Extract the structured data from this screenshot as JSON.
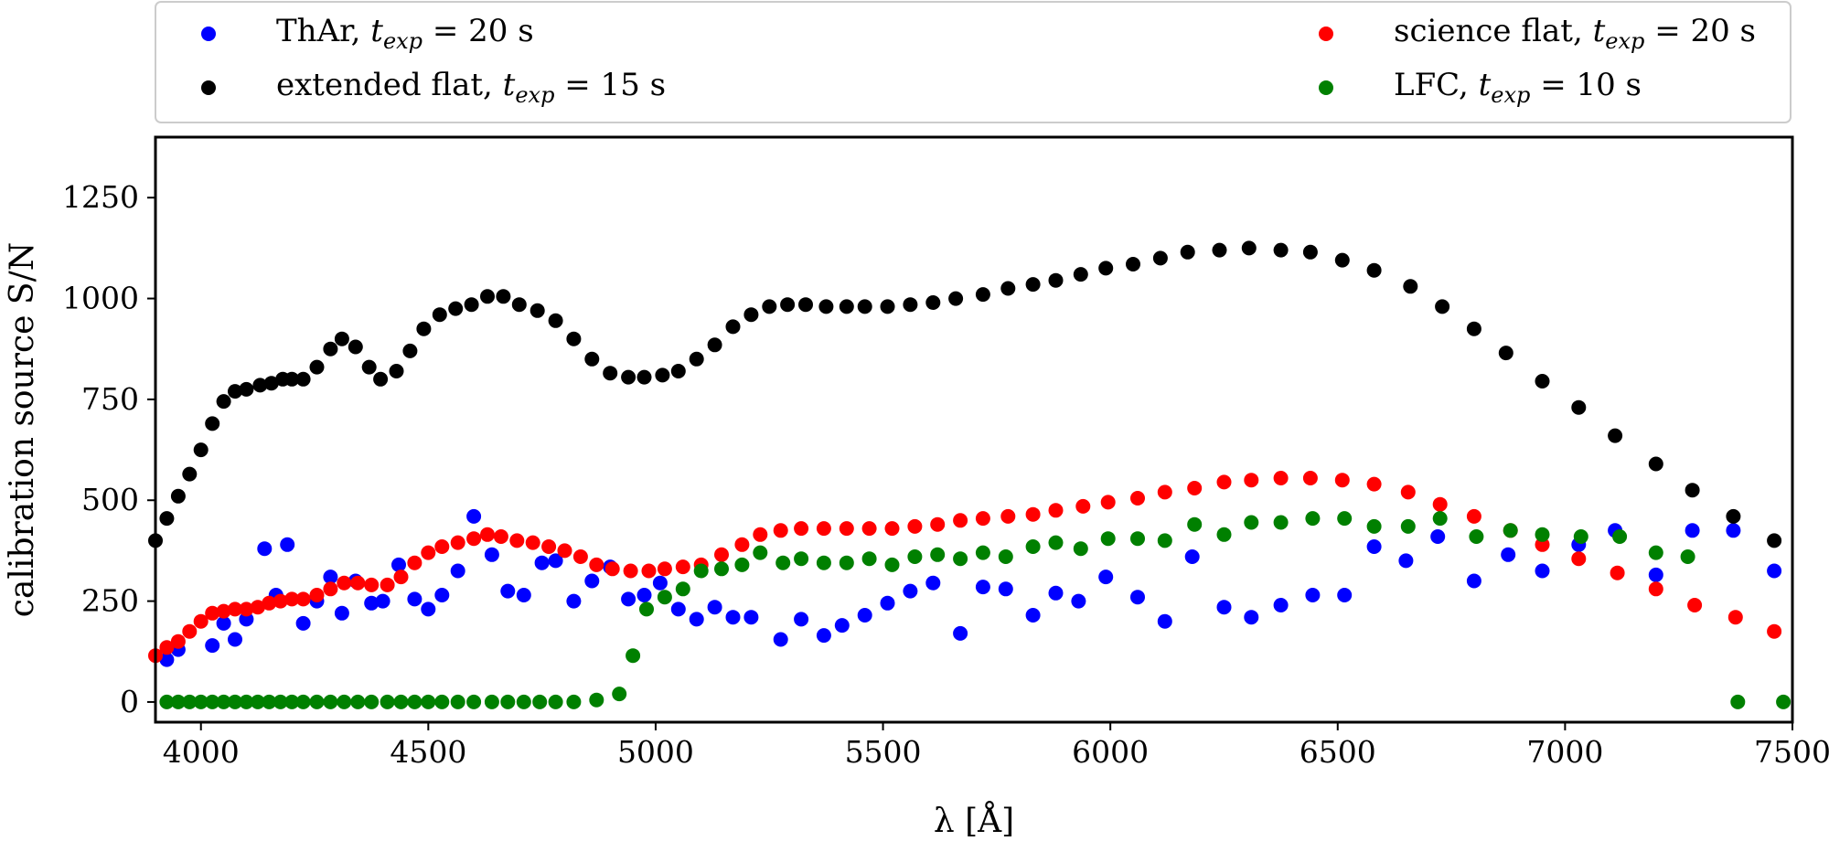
{
  "chart_data": {
    "type": "scatter",
    "xlabel": "λ [Å]",
    "ylabel": "calibration source S/N",
    "xlim": [
      3900,
      7500
    ],
    "ylim": [
      -50,
      1400
    ],
    "xticks": [
      4000,
      4500,
      5000,
      5500,
      6000,
      6500,
      7000,
      7500
    ],
    "yticks": [
      0,
      250,
      500,
      750,
      1000,
      1250
    ],
    "legend_position": "top, outside plot, two columns",
    "series": [
      {
        "name": "ThAr, t_exp = 20 s",
        "label_prefix": "ThAr, ",
        "label_suffix": "= 20 s",
        "color": "#0000ff",
        "x": [
          3925,
          3950,
          4025,
          4050,
          4075,
          4100,
          4140,
          4165,
          4190,
          4225,
          4255,
          4285,
          4310,
          4340,
          4375,
          4400,
          4435,
          4470,
          4500,
          4530,
          4565,
          4600,
          4640,
          4675,
          4710,
          4750,
          4780,
          4820,
          4860,
          4900,
          4940,
          4975,
          5010,
          5050,
          5090,
          5130,
          5170,
          5210,
          5275,
          5320,
          5370,
          5410,
          5460,
          5510,
          5560,
          5610,
          5670,
          5720,
          5770,
          5830,
          5880,
          5930,
          5990,
          6060,
          6120,
          6180,
          6250,
          6310,
          6375,
          6445,
          6515,
          6580,
          6650,
          6720,
          6800,
          6875,
          6950,
          7030,
          7110,
          7200,
          7280,
          7370,
          7460
        ],
        "y": [
          105,
          130,
          140,
          195,
          155,
          205,
          380,
          265,
          390,
          195,
          250,
          310,
          220,
          300,
          245,
          250,
          340,
          255,
          230,
          265,
          325,
          460,
          365,
          275,
          265,
          345,
          350,
          250,
          300,
          335,
          255,
          265,
          295,
          230,
          205,
          235,
          210,
          210,
          155,
          205,
          165,
          190,
          215,
          245,
          275,
          295,
          170,
          285,
          280,
          215,
          270,
          250,
          310,
          260,
          200,
          360,
          235,
          210,
          240,
          265,
          265,
          385,
          350,
          410,
          300,
          365,
          325,
          390,
          425,
          315,
          425,
          425,
          325
        ]
      },
      {
        "name": "extended flat, t_exp = 15 s",
        "label_prefix": "extended flat, ",
        "label_suffix": "= 15 s",
        "color": "#000000",
        "x": [
          3900,
          3925,
          3950,
          3975,
          4000,
          4025,
          4050,
          4075,
          4100,
          4130,
          4155,
          4180,
          4200,
          4225,
          4255,
          4285,
          4310,
          4340,
          4370,
          4395,
          4430,
          4460,
          4490,
          4525,
          4560,
          4595,
          4630,
          4665,
          4700,
          4740,
          4780,
          4820,
          4860,
          4900,
          4940,
          4975,
          5015,
          5050,
          5090,
          5130,
          5170,
          5210,
          5250,
          5290,
          5330,
          5375,
          5420,
          5460,
          5510,
          5560,
          5610,
          5660,
          5720,
          5775,
          5830,
          5880,
          5935,
          5990,
          6050,
          6110,
          6170,
          6240,
          6305,
          6375,
          6440,
          6510,
          6580,
          6660,
          6730,
          6800,
          6870,
          6950,
          7030,
          7110,
          7200,
          7280,
          7370,
          7460
        ],
        "y": [
          400,
          455,
          510,
          565,
          625,
          690,
          745,
          770,
          775,
          785,
          790,
          800,
          800,
          800,
          830,
          875,
          900,
          880,
          830,
          800,
          820,
          870,
          925,
          960,
          975,
          985,
          1005,
          1005,
          985,
          970,
          945,
          900,
          850,
          815,
          805,
          805,
          810,
          820,
          850,
          885,
          930,
          960,
          980,
          985,
          985,
          980,
          980,
          980,
          980,
          985,
          990,
          1000,
          1010,
          1025,
          1035,
          1045,
          1060,
          1075,
          1085,
          1100,
          1115,
          1120,
          1125,
          1120,
          1115,
          1095,
          1070,
          1030,
          980,
          925,
          865,
          795,
          730,
          660,
          590,
          525,
          460,
          400
        ]
      },
      {
        "name": "science flat, t_exp = 20 s",
        "label_prefix": "science flat, ",
        "label_suffix": "= 20 s",
        "color": "#ff0000",
        "x": [
          3900,
          3925,
          3950,
          3975,
          4000,
          4025,
          4050,
          4075,
          4100,
          4125,
          4150,
          4175,
          4200,
          4225,
          4255,
          4285,
          4315,
          4345,
          4375,
          4410,
          4440,
          4470,
          4500,
          4530,
          4565,
          4600,
          4630,
          4660,
          4695,
          4730,
          4765,
          4800,
          4835,
          4870,
          4905,
          4945,
          4985,
          5020,
          5060,
          5100,
          5145,
          5190,
          5230,
          5275,
          5320,
          5370,
          5420,
          5470,
          5520,
          5570,
          5620,
          5670,
          5720,
          5775,
          5830,
          5880,
          5940,
          5995,
          6060,
          6120,
          6185,
          6250,
          6310,
          6375,
          6440,
          6510,
          6580,
          6655,
          6725,
          6800,
          6880,
          6950,
          7030,
          7115,
          7200,
          7285,
          7375,
          7460
        ],
        "y": [
          115,
          135,
          150,
          175,
          200,
          220,
          225,
          230,
          230,
          235,
          245,
          250,
          255,
          255,
          265,
          280,
          295,
          295,
          290,
          290,
          310,
          345,
          370,
          385,
          395,
          405,
          415,
          410,
          400,
          395,
          385,
          375,
          360,
          340,
          330,
          325,
          325,
          330,
          335,
          340,
          365,
          390,
          415,
          425,
          430,
          430,
          430,
          430,
          430,
          435,
          440,
          450,
          455,
          460,
          465,
          475,
          485,
          495,
          505,
          520,
          530,
          545,
          550,
          555,
          555,
          550,
          540,
          520,
          490,
          460,
          425,
          390,
          355,
          320,
          280,
          240,
          210,
          175
        ]
      },
      {
        "name": "LFC, t_exp = 10 s",
        "label_prefix": "LFC, ",
        "label_suffix": "= 10 s",
        "color": "#008000",
        "x": [
          3925,
          3950,
          3975,
          4000,
          4025,
          4050,
          4075,
          4100,
          4125,
          4150,
          4175,
          4200,
          4225,
          4255,
          4285,
          4315,
          4345,
          4375,
          4410,
          4440,
          4470,
          4500,
          4530,
          4565,
          4600,
          4640,
          4675,
          4710,
          4745,
          4780,
          4820,
          4870,
          4920,
          4950,
          4980,
          5020,
          5060,
          5100,
          5145,
          5190,
          5230,
          5280,
          5320,
          5370,
          5420,
          5470,
          5520,
          5570,
          5620,
          5670,
          5720,
          5770,
          5830,
          5880,
          5935,
          5995,
          6060,
          6120,
          6185,
          6250,
          6310,
          6375,
          6445,
          6515,
          6580,
          6655,
          6725,
          6805,
          6880,
          6950,
          7035,
          7120,
          7200,
          7270,
          7380,
          7480
        ],
        "y": [
          0,
          0,
          0,
          0,
          0,
          0,
          0,
          0,
          0,
          0,
          0,
          0,
          0,
          0,
          0,
          0,
          0,
          0,
          0,
          0,
          0,
          0,
          0,
          0,
          0,
          0,
          0,
          0,
          0,
          0,
          0,
          5,
          20,
          115,
          230,
          260,
          280,
          325,
          330,
          340,
          370,
          345,
          355,
          345,
          345,
          355,
          340,
          360,
          365,
          355,
          370,
          360,
          385,
          395,
          380,
          405,
          405,
          400,
          440,
          415,
          445,
          445,
          455,
          455,
          435,
          435,
          455,
          410,
          425,
          415,
          410,
          410,
          370,
          360,
          0,
          0
        ]
      }
    ]
  }
}
